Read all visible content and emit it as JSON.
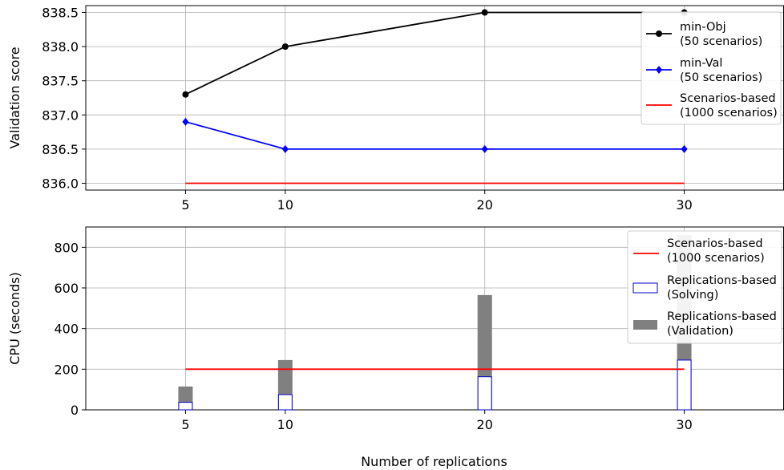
{
  "xlabel": "Number of replications",
  "chart_data": [
    {
      "type": "line",
      "ylabel": "Validation score",
      "xlim": [
        0,
        35
      ],
      "ylim": [
        835.9,
        838.6
      ],
      "x_ticks": [
        5,
        10,
        20,
        30
      ],
      "y_ticks": [
        "836.0",
        "836.5",
        "837.0",
        "837.5",
        "838.0",
        "838.5"
      ],
      "y_tick_values": [
        836.0,
        836.5,
        837.0,
        837.5,
        838.0,
        838.5
      ],
      "grid": true,
      "legend_position": "top-right",
      "series": [
        {
          "name": "min-Obj\n(50 scenarios)",
          "x": [
            5,
            10,
            20,
            30
          ],
          "y": [
            837.3,
            838.0,
            838.5,
            838.5
          ],
          "color": "#000000",
          "marker": "circle"
        },
        {
          "name": "min-Val\n(50 scenarios)",
          "x": [
            5,
            10,
            20,
            30
          ],
          "y": [
            836.9,
            836.5,
            836.5,
            836.5
          ],
          "color": "#0000ff",
          "marker": "diamond"
        },
        {
          "name": "Scenarios-based\n(1000 scenarios)",
          "x": [
            5,
            30
          ],
          "y": [
            836.0,
            836.0
          ],
          "color": "#ff0000",
          "marker": "none"
        }
      ]
    },
    {
      "type": "bar",
      "ylabel": "CPU (seconds)",
      "xlim": [
        0,
        35
      ],
      "ylim": [
        0,
        900
      ],
      "x_ticks": [
        5,
        10,
        20,
        30
      ],
      "y_ticks": [
        "0",
        "200",
        "400",
        "600",
        "800"
      ],
      "y_tick_values": [
        0,
        200,
        400,
        600,
        800
      ],
      "grid": true,
      "legend_position": "top-right",
      "categories": [
        5,
        10,
        20,
        30
      ],
      "series": [
        {
          "name": "Replications-based\n(Validation)",
          "values": [
            115,
            245,
            565,
            860
          ],
          "color": "#808080",
          "style": "filled"
        },
        {
          "name": "Replications-based\n(Solving)",
          "values": [
            37,
            75,
            163,
            245
          ],
          "color": "#0000cc",
          "style": "outline"
        }
      ],
      "reference_line": {
        "name": "Scenarios-based\n(1000 scenarios)",
        "x": [
          5,
          30
        ],
        "y": 200,
        "color": "#ff0000"
      }
    }
  ]
}
